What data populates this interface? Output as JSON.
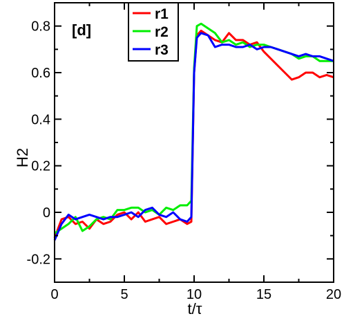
{
  "chart_data": {
    "type": "line",
    "panel_label": "[d]",
    "xlabel": "t/τ",
    "ylabel": "H2",
    "xlim": [
      0,
      20
    ],
    "ylim": [
      -0.3,
      0.9
    ],
    "xticks": [
      0,
      5,
      10,
      15,
      20
    ],
    "xtick_labels": [
      "0",
      "5",
      "10",
      "15",
      "20"
    ],
    "yticks": [
      -0.2,
      0,
      0.2,
      0.4,
      0.6,
      0.8
    ],
    "ytick_labels": [
      "-0.2",
      "0",
      "0.2",
      "0.4",
      "0.6",
      "0.8"
    ],
    "grid": false,
    "legend_position": "top-center",
    "series": [
      {
        "name": "r1",
        "color": "#ff0000",
        "x": [
          0.0,
          0.5,
          1.0,
          1.5,
          2.0,
          2.5,
          3.0,
          3.5,
          4.0,
          4.5,
          5.0,
          5.5,
          6.0,
          6.5,
          7.0,
          7.5,
          8.0,
          8.5,
          9.0,
          9.5,
          9.8,
          10.0,
          10.2,
          10.5,
          11.0,
          11.5,
          12.0,
          12.5,
          13.0,
          13.5,
          14.0,
          14.5,
          15.0,
          15.5,
          16.0,
          16.5,
          17.0,
          17.5,
          18.0,
          18.5,
          19.0,
          19.5,
          20.0
        ],
        "y": [
          -0.11,
          -0.03,
          -0.02,
          -0.05,
          -0.04,
          -0.07,
          -0.03,
          -0.05,
          -0.04,
          -0.01,
          0.0,
          -0.03,
          0.0,
          -0.04,
          -0.03,
          -0.02,
          -0.05,
          -0.04,
          -0.03,
          -0.05,
          -0.04,
          0.6,
          0.76,
          0.78,
          0.76,
          0.74,
          0.73,
          0.77,
          0.74,
          0.74,
          0.72,
          0.73,
          0.69,
          0.66,
          0.63,
          0.6,
          0.57,
          0.58,
          0.6,
          0.6,
          0.58,
          0.59,
          0.58
        ]
      },
      {
        "name": "r2",
        "color": "#00ee00",
        "x": [
          0.0,
          0.5,
          1.0,
          1.5,
          2.0,
          2.5,
          3.0,
          3.5,
          4.0,
          4.5,
          5.0,
          5.5,
          6.0,
          6.5,
          7.0,
          7.5,
          8.0,
          8.5,
          9.0,
          9.5,
          9.8,
          10.0,
          10.2,
          10.5,
          11.0,
          11.5,
          12.0,
          12.5,
          13.0,
          13.5,
          14.0,
          14.5,
          15.0,
          15.5,
          16.0,
          16.5,
          17.0,
          17.5,
          18.0,
          18.5,
          19.0,
          19.5,
          20.0
        ],
        "y": [
          -0.09,
          -0.07,
          -0.05,
          -0.02,
          -0.08,
          -0.06,
          -0.03,
          -0.02,
          -0.03,
          0.01,
          0.01,
          0.02,
          0.02,
          0.0,
          0.01,
          -0.01,
          0.02,
          0.01,
          0.03,
          0.03,
          0.05,
          0.62,
          0.8,
          0.81,
          0.79,
          0.77,
          0.73,
          0.74,
          0.72,
          0.73,
          0.71,
          0.72,
          0.72,
          0.71,
          0.7,
          0.69,
          0.68,
          0.66,
          0.67,
          0.67,
          0.65,
          0.65,
          0.65
        ]
      },
      {
        "name": "r3",
        "color": "#0000ff",
        "x": [
          0.0,
          0.5,
          1.0,
          1.5,
          2.0,
          2.5,
          3.0,
          3.5,
          4.0,
          4.5,
          5.0,
          5.5,
          6.0,
          6.5,
          7.0,
          7.5,
          8.0,
          8.5,
          9.0,
          9.5,
          9.8,
          10.0,
          10.2,
          10.5,
          11.0,
          11.5,
          12.0,
          12.5,
          13.0,
          13.5,
          14.0,
          14.5,
          15.0,
          15.5,
          16.0,
          16.5,
          17.0,
          17.5,
          18.0,
          18.5,
          19.0,
          19.5,
          20.0
        ],
        "y": [
          -0.12,
          -0.05,
          -0.01,
          -0.03,
          -0.02,
          -0.01,
          -0.02,
          -0.03,
          -0.02,
          -0.02,
          -0.01,
          0.0,
          -0.02,
          0.01,
          0.02,
          -0.01,
          -0.02,
          0.0,
          -0.03,
          -0.04,
          -0.02,
          0.6,
          0.75,
          0.77,
          0.76,
          0.71,
          0.72,
          0.72,
          0.71,
          0.71,
          0.72,
          0.7,
          0.71,
          0.71,
          0.7,
          0.69,
          0.68,
          0.67,
          0.68,
          0.67,
          0.67,
          0.66,
          0.65
        ]
      }
    ]
  }
}
